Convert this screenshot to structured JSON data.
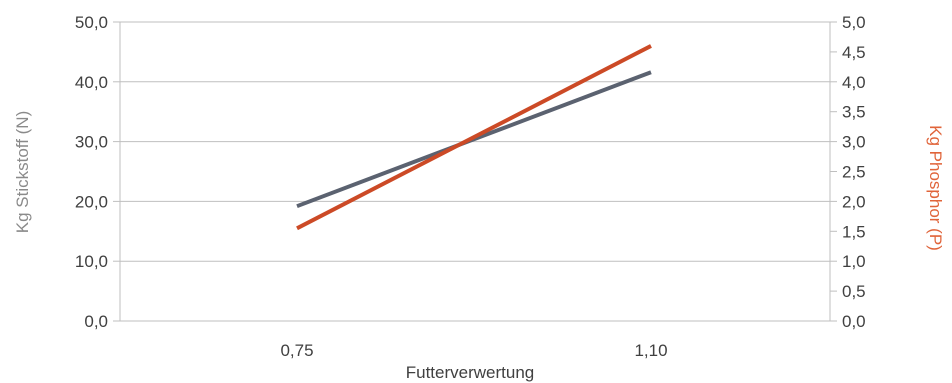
{
  "chart_data": {
    "type": "line",
    "categories": [
      "0,75",
      "1,10"
    ],
    "xlabel": "Futterverwertung",
    "ylabel_left": "Kg Stickstoff (N)",
    "ylabel_right": "Kg Phosphor (P)",
    "ylim_left": [
      0,
      50
    ],
    "ylim_right": [
      0,
      5
    ],
    "yticks_left": [
      "0,0",
      "10,0",
      "20,0",
      "30,0",
      "40,0",
      "50,0"
    ],
    "yticks_right": [
      "0,0",
      "0,5",
      "1,0",
      "1,5",
      "2,0",
      "2,5",
      "3,0",
      "3,5",
      "4,0",
      "4,5",
      "5,0"
    ],
    "grid": true,
    "series": [
      {
        "axis": "left",
        "values": [
          19.2,
          41.6
        ],
        "color": "#5b6270"
      },
      {
        "axis": "right",
        "values": [
          1.55,
          4.6
        ],
        "color": "#cc4a26"
      }
    ],
    "colors": {
      "axis_left_title": "#8a8a8a",
      "axis_right_title": "#e0643a",
      "grid": "#bfbfbf",
      "tick_text": "#404040"
    }
  }
}
